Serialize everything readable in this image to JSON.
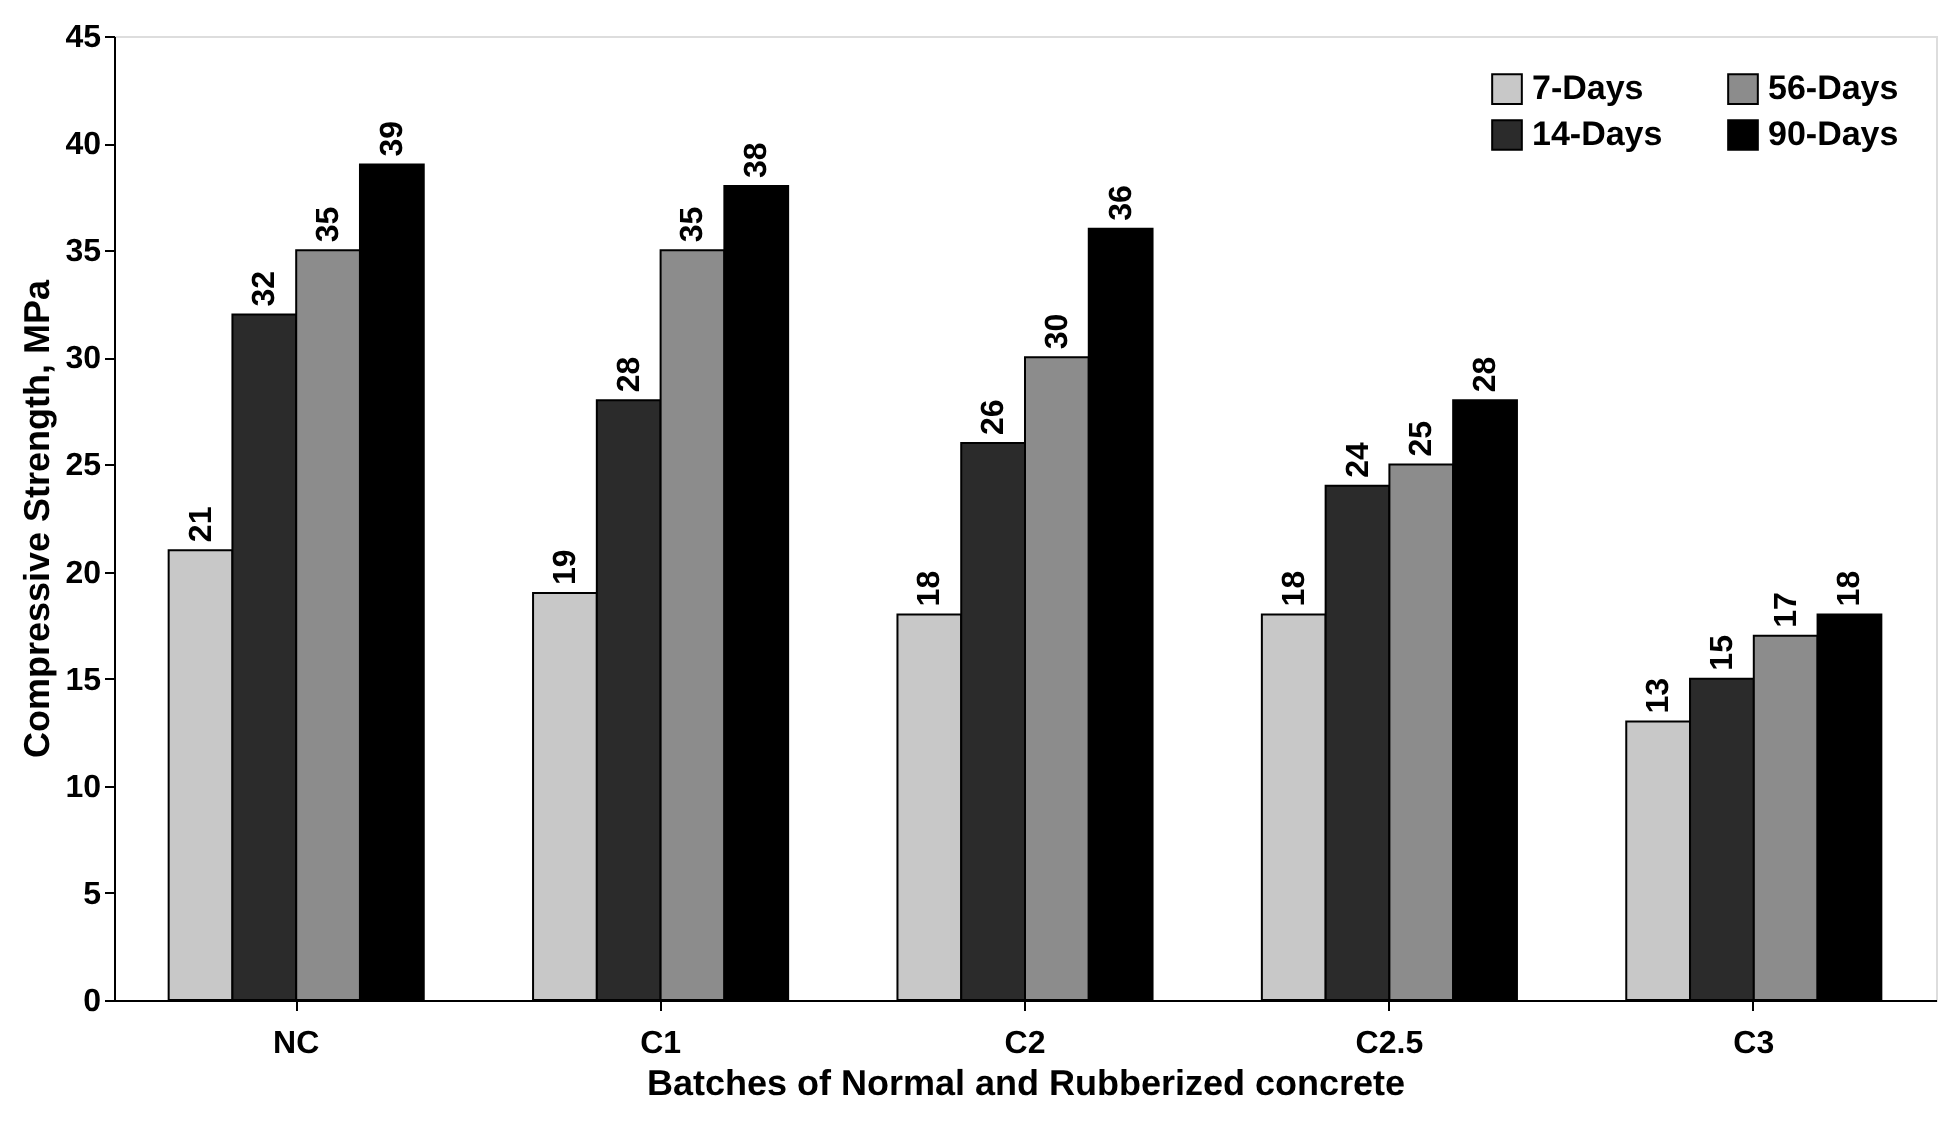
{
  "chart_data": {
    "type": "bar",
    "xlabel": "Batches of Normal and Rubberized concrete",
    "ylabel": "Compressive Strength, MPa",
    "categories": [
      "NC",
      "C1",
      "C2",
      "C2.5",
      "C3"
    ],
    "series": [
      {
        "name": "7-Days",
        "color": "#c8c8c8",
        "values": [
          21,
          19,
          18,
          18,
          13
        ]
      },
      {
        "name": "14-Days",
        "color": "#2b2b2b",
        "values": [
          32,
          28,
          26,
          24,
          15
        ]
      },
      {
        "name": "56-Days",
        "color": "#8c8c8c",
        "values": [
          35,
          35,
          30,
          25,
          17
        ]
      },
      {
        "name": "90-Days",
        "color": "#000000",
        "values": [
          39,
          38,
          36,
          28,
          18
        ]
      }
    ],
    "ylim": [
      0,
      45
    ],
    "yticks": [
      0,
      5,
      10,
      15,
      20,
      25,
      30,
      35,
      40,
      45
    ],
    "data_labels": true,
    "legend": "top right"
  }
}
